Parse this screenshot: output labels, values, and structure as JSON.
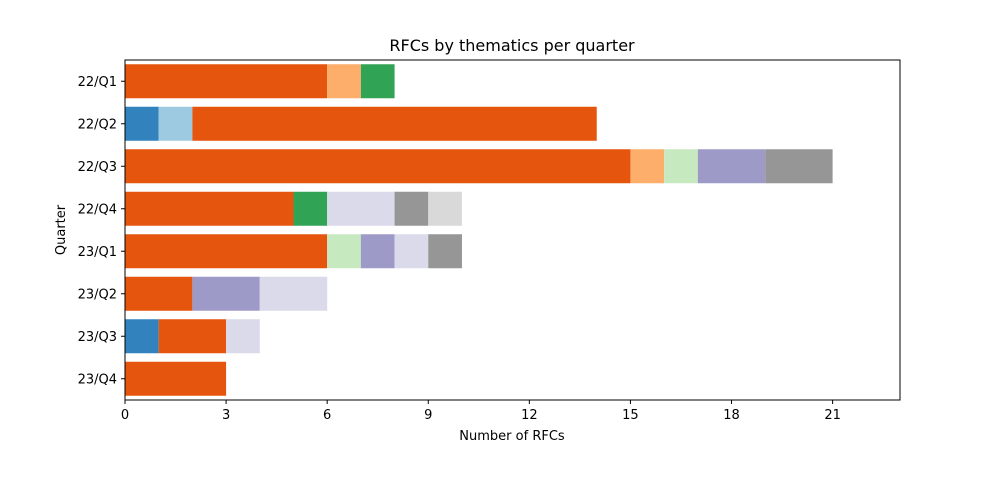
{
  "chart_data": {
    "type": "bar",
    "orientation": "horizontal",
    "stacked": true,
    "title": "RFCs by thematics per quarter",
    "xlabel": "Number of RFCs",
    "ylabel": "Quarter",
    "xlim": [
      0,
      23
    ],
    "xticks": [
      0,
      3,
      6,
      9,
      12,
      15,
      18,
      21
    ],
    "grid": false,
    "legend": "none",
    "categories": [
      "22/Q1",
      "22/Q2",
      "22/Q3",
      "22/Q4",
      "23/Q1",
      "23/Q2",
      "23/Q3",
      "23/Q4"
    ],
    "series": [
      {
        "color": "#3182bd",
        "values": [
          0,
          1,
          0,
          0,
          0,
          0,
          1,
          0
        ]
      },
      {
        "color": "#9ecae1",
        "values": [
          0,
          1,
          0,
          0,
          0,
          0,
          0,
          0
        ]
      },
      {
        "color": "#e6550d",
        "values": [
          6,
          12,
          15,
          5,
          6,
          2,
          2,
          3
        ]
      },
      {
        "color": "#fdae6b",
        "values": [
          1,
          0,
          1,
          0,
          0,
          0,
          0,
          0
        ]
      },
      {
        "color": "#31a354",
        "values": [
          1,
          0,
          0,
          1,
          0,
          0,
          0,
          0
        ]
      },
      {
        "color": "#c7e9c0",
        "values": [
          0,
          0,
          1,
          0,
          1,
          0,
          0,
          0
        ]
      },
      {
        "color": "#9e9ac8",
        "values": [
          0,
          0,
          2,
          0,
          1,
          2,
          0,
          0
        ]
      },
      {
        "color": "#dadaeb",
        "values": [
          0,
          0,
          0,
          2,
          1,
          2,
          1,
          0
        ]
      },
      {
        "color": "#969696",
        "values": [
          0,
          0,
          2,
          1,
          1,
          0,
          0,
          0
        ]
      },
      {
        "color": "#d9d9d9",
        "values": [
          0,
          0,
          0,
          1,
          0,
          0,
          0,
          0
        ]
      }
    ]
  }
}
